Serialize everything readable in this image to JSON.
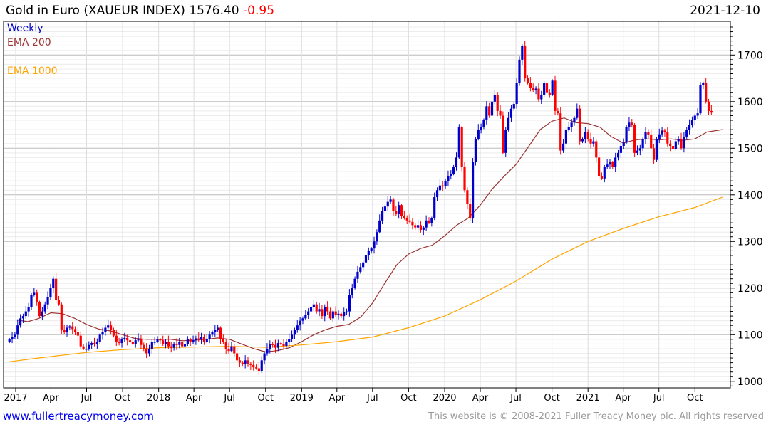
{
  "header": {
    "title": "Gold in Euro (XAUEUR INDEX)",
    "last": "1576.40",
    "change": "-0.95",
    "date": "2021-12-10"
  },
  "legend": {
    "period": "Weekly",
    "ema200": "EMA 200",
    "ema1000": "EMA 1000"
  },
  "footer": {
    "link": "www.fullertreacymoney.com",
    "copyright": "This website is © 2008-2021 Fuller Treacy Money plc. All rights reserved"
  },
  "colors": {
    "up": "#0000cc",
    "down": "#ff0000",
    "ema200": "#993333",
    "ema1000": "#ffa500"
  },
  "chart_data": {
    "type": "candlestick",
    "title": "Gold in Euro (XAUEUR INDEX)",
    "ylim": [
      990,
      1760
    ],
    "y_ticks": [
      1000,
      1100,
      1200,
      1300,
      1400,
      1500,
      1600,
      1700
    ],
    "x_ticks": [
      {
        "date": "2017-01-01",
        "label": "2017"
      },
      {
        "date": "2017-04-01",
        "label": "Apr"
      },
      {
        "date": "2017-07-01",
        "label": "Jul"
      },
      {
        "date": "2017-10-01",
        "label": "Oct"
      },
      {
        "date": "2018-01-01",
        "label": "2018"
      },
      {
        "date": "2018-04-01",
        "label": "Apr"
      },
      {
        "date": "2018-07-01",
        "label": "Jul"
      },
      {
        "date": "2018-10-01",
        "label": "Oct"
      },
      {
        "date": "2019-01-01",
        "label": "2019"
      },
      {
        "date": "2019-04-01",
        "label": "Apr"
      },
      {
        "date": "2019-07-01",
        "label": "Jul"
      },
      {
        "date": "2019-10-01",
        "label": "Oct"
      },
      {
        "date": "2020-01-01",
        "label": "2020"
      },
      {
        "date": "2020-04-01",
        "label": "Apr"
      },
      {
        "date": "2020-07-01",
        "label": "Jul"
      },
      {
        "date": "2020-10-01",
        "label": "Oct"
      },
      {
        "date": "2021-01-01",
        "label": "2021"
      },
      {
        "date": "2021-04-01",
        "label": "Apr"
      },
      {
        "date": "2021-07-01",
        "label": "Jul"
      },
      {
        "date": "2021-10-01",
        "label": "Oct"
      }
    ],
    "first_week": "2016-12-16",
    "weekly_close": [
      1090,
      1095,
      1100,
      1120,
      1135,
      1140,
      1150,
      1160,
      1185,
      1190,
      1170,
      1140,
      1150,
      1165,
      1180,
      1200,
      1220,
      1175,
      1165,
      1110,
      1105,
      1115,
      1118,
      1112,
      1105,
      1098,
      1075,
      1070,
      1070,
      1078,
      1082,
      1080,
      1085,
      1100,
      1105,
      1115,
      1120,
      1110,
      1098,
      1085,
      1082,
      1090,
      1093,
      1088,
      1085,
      1080,
      1088,
      1090,
      1078,
      1070,
      1060,
      1070,
      1085,
      1085,
      1090,
      1088,
      1080,
      1085,
      1075,
      1072,
      1080,
      1078,
      1085,
      1075,
      1080,
      1090,
      1085,
      1088,
      1092,
      1090,
      1095,
      1085,
      1090,
      1100,
      1105,
      1110,
      1115,
      1090,
      1085,
      1070,
      1065,
      1075,
      1060,
      1045,
      1040,
      1038,
      1045,
      1038,
      1035,
      1030,
      1028,
      1022,
      1045,
      1060,
      1070,
      1080,
      1078,
      1072,
      1082,
      1080,
      1076,
      1085,
      1090,
      1100,
      1110,
      1120,
      1130,
      1135,
      1142,
      1150,
      1160,
      1165,
      1150,
      1155,
      1140,
      1160,
      1150,
      1135,
      1150,
      1142,
      1145,
      1140,
      1148,
      1150,
      1185,
      1200,
      1220,
      1235,
      1245,
      1255,
      1270,
      1280,
      1285,
      1300,
      1320,
      1345,
      1365,
      1375,
      1385,
      1390,
      1365,
      1360,
      1378,
      1355,
      1350,
      1345,
      1342,
      1335,
      1330,
      1335,
      1325,
      1330,
      1345,
      1340,
      1350,
      1395,
      1410,
      1420,
      1418,
      1430,
      1440,
      1445,
      1460,
      1480,
      1545,
      1460,
      1410,
      1380,
      1350,
      1470,
      1520,
      1540,
      1545,
      1560,
      1590,
      1570,
      1600,
      1615,
      1580,
      1570,
      1490,
      1540,
      1565,
      1585,
      1595,
      1640,
      1690,
      1720,
      1650,
      1640,
      1630,
      1625,
      1628,
      1605,
      1615,
      1640,
      1620,
      1615,
      1645,
      1580,
      1575,
      1495,
      1510,
      1540,
      1545,
      1555,
      1565,
      1585,
      1515,
      1520,
      1535,
      1520,
      1510,
      1515,
      1480,
      1440,
      1435,
      1460,
      1465,
      1470,
      1460,
      1480,
      1490,
      1505,
      1512,
      1545,
      1555,
      1550,
      1490,
      1495,
      1500,
      1520,
      1535,
      1528,
      1500,
      1475,
      1520,
      1530,
      1538,
      1535,
      1510,
      1505,
      1498,
      1515,
      1520,
      1500,
      1525,
      1540,
      1550,
      1560,
      1570,
      1575,
      1635,
      1640,
      1600,
      1580,
      1576.4
    ],
    "series": [
      {
        "name": "EMA 200",
        "points": [
          [
            "2017-01-01",
            1132
          ],
          [
            "2017-02-01",
            1128
          ],
          [
            "2017-03-01",
            1135
          ],
          [
            "2017-04-01",
            1147
          ],
          [
            "2017-05-01",
            1145
          ],
          [
            "2017-06-01",
            1135
          ],
          [
            "2017-07-01",
            1122
          ],
          [
            "2017-08-01",
            1112
          ],
          [
            "2017-09-01",
            1108
          ],
          [
            "2017-10-01",
            1100
          ],
          [
            "2017-11-01",
            1092
          ],
          [
            "2017-12-01",
            1090
          ],
          [
            "2018-01-01",
            1090
          ],
          [
            "2018-02-01",
            1090
          ],
          [
            "2018-03-01",
            1087
          ],
          [
            "2018-04-01",
            1088
          ],
          [
            "2018-05-01",
            1090
          ],
          [
            "2018-06-01",
            1093
          ],
          [
            "2018-07-01",
            1090
          ],
          [
            "2018-08-01",
            1080
          ],
          [
            "2018-09-01",
            1070
          ],
          [
            "2018-10-01",
            1063
          ],
          [
            "2018-11-01",
            1066
          ],
          [
            "2018-12-01",
            1072
          ],
          [
            "2019-01-01",
            1085
          ],
          [
            "2019-02-01",
            1100
          ],
          [
            "2019-03-01",
            1110
          ],
          [
            "2019-04-01",
            1118
          ],
          [
            "2019-05-01",
            1122
          ],
          [
            "2019-06-01",
            1138
          ],
          [
            "2019-07-01",
            1168
          ],
          [
            "2019-08-01",
            1210
          ],
          [
            "2019-09-01",
            1250
          ],
          [
            "2019-10-01",
            1273
          ],
          [
            "2019-11-01",
            1285
          ],
          [
            "2019-12-01",
            1292
          ],
          [
            "2020-01-01",
            1312
          ],
          [
            "2020-02-01",
            1335
          ],
          [
            "2020-03-01",
            1350
          ],
          [
            "2020-04-01",
            1378
          ],
          [
            "2020-05-01",
            1412
          ],
          [
            "2020-06-01",
            1440
          ],
          [
            "2020-07-01",
            1465
          ],
          [
            "2020-08-01",
            1502
          ],
          [
            "2020-09-01",
            1540
          ],
          [
            "2020-10-01",
            1558
          ],
          [
            "2020-11-01",
            1565
          ],
          [
            "2020-12-01",
            1555
          ],
          [
            "2021-01-01",
            1553
          ],
          [
            "2021-02-01",
            1545
          ],
          [
            "2021-03-01",
            1525
          ],
          [
            "2021-04-01",
            1511
          ],
          [
            "2021-05-01",
            1518
          ],
          [
            "2021-06-01",
            1520
          ],
          [
            "2021-07-01",
            1518
          ],
          [
            "2021-08-01",
            1520
          ],
          [
            "2021-09-01",
            1517
          ],
          [
            "2021-10-01",
            1520
          ],
          [
            "2021-11-01",
            1535
          ],
          [
            "2021-12-10",
            1540
          ]
        ]
      },
      {
        "name": "EMA 1000",
        "points": [
          [
            "2016-12-16",
            1042
          ],
          [
            "2017-03-01",
            1050
          ],
          [
            "2017-07-01",
            1062
          ],
          [
            "2017-10-01",
            1068
          ],
          [
            "2018-01-01",
            1072
          ],
          [
            "2018-07-01",
            1075
          ],
          [
            "2018-10-01",
            1073
          ],
          [
            "2019-01-01",
            1078
          ],
          [
            "2019-04-01",
            1085
          ],
          [
            "2019-07-01",
            1095
          ],
          [
            "2019-10-01",
            1115
          ],
          [
            "2020-01-01",
            1140
          ],
          [
            "2020-04-01",
            1175
          ],
          [
            "2020-07-01",
            1215
          ],
          [
            "2020-10-01",
            1262
          ],
          [
            "2021-01-01",
            1300
          ],
          [
            "2021-04-01",
            1328
          ],
          [
            "2021-07-01",
            1353
          ],
          [
            "2021-10-01",
            1373
          ],
          [
            "2021-12-10",
            1395
          ]
        ]
      }
    ]
  }
}
